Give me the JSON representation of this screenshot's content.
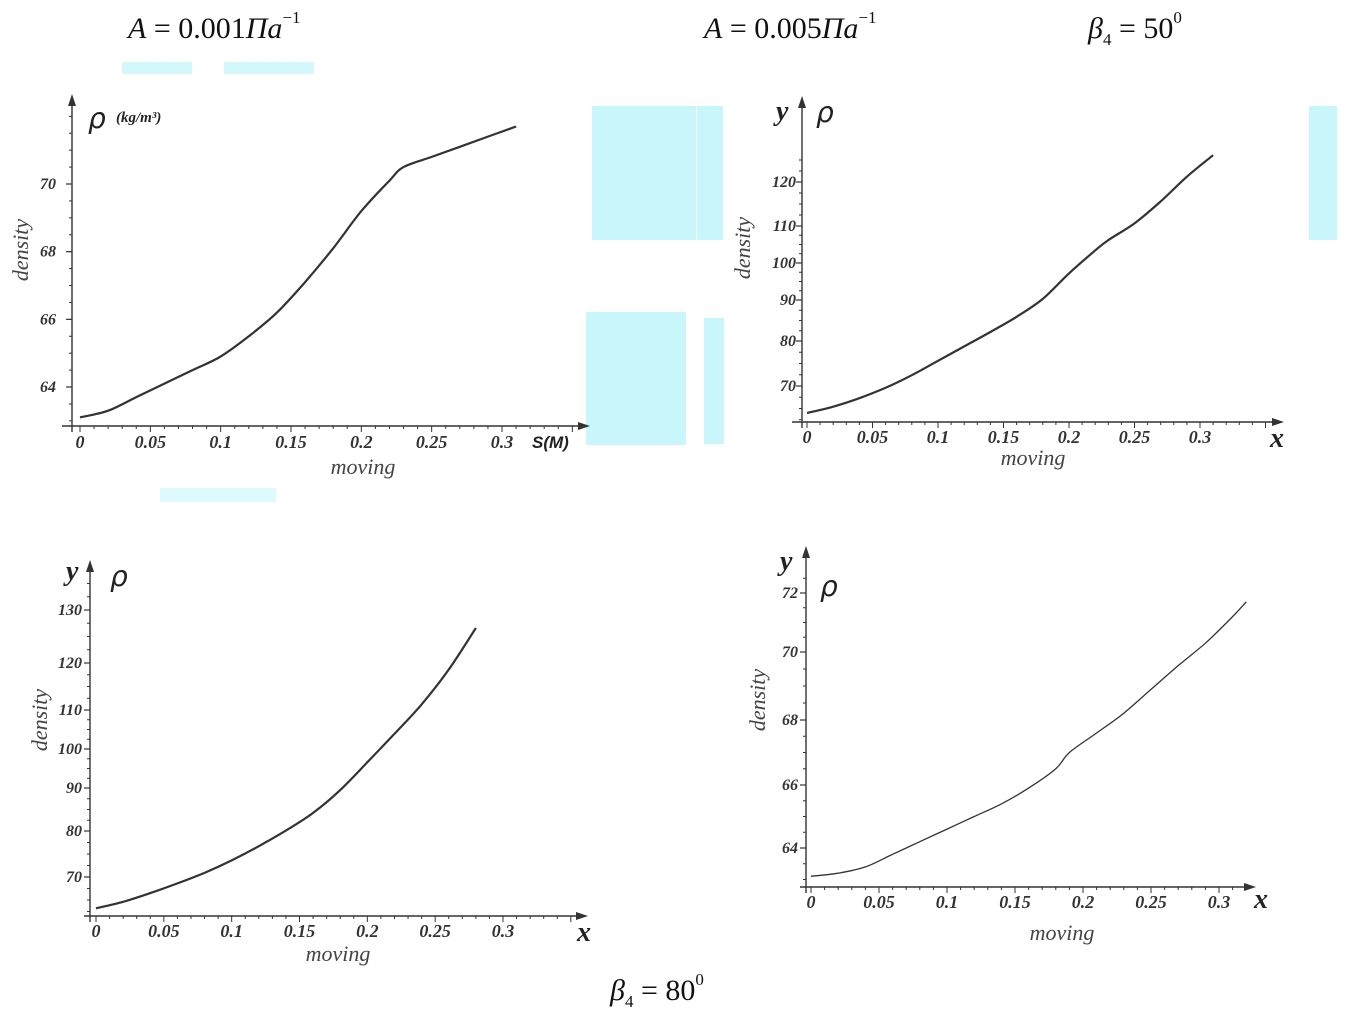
{
  "headers": {
    "left_formula": {
      "lhs": "A",
      "eq": " = ",
      "value": "0.001",
      "unit_base": "Па",
      "unit_exp": "−1"
    },
    "right_formula": {
      "lhs": "A",
      "eq": " = ",
      "value": "0.005",
      "unit_base": "Па",
      "unit_exp": "−1"
    },
    "beta_top": {
      "sym": "β",
      "sub": "4",
      "eq": " = ",
      "value": "50",
      "sup": "0"
    },
    "beta_bottom": {
      "sym": "β",
      "sub": "4",
      "eq": " = ",
      "value": "80",
      "sup": "0"
    }
  },
  "watermark_color": "#c8f6fb",
  "chart_data": [
    {
      "type": "line",
      "position": "top-left",
      "xlabel": "moving",
      "ylabel": "density",
      "x_axis_name": "S(M)",
      "y_axis_name": "ρ",
      "y_unit": "(kg/m³)",
      "x_ticks": [
        "0",
        "0.05",
        "0.1",
        "0.15",
        "0.2",
        "0.25",
        "0.3"
      ],
      "y_ticks": [
        "64",
        "66",
        "68",
        "70"
      ],
      "xlim": [
        0,
        0.35
      ],
      "ylim": [
        63,
        72
      ],
      "series": [
        {
          "x": [
            0,
            0.02,
            0.04,
            0.06,
            0.08,
            0.1,
            0.12,
            0.14,
            0.16,
            0.18,
            0.2,
            0.22,
            0.23,
            0.25,
            0.27,
            0.29,
            0.31
          ],
          "y": [
            63.1,
            63.3,
            63.7,
            64.1,
            64.5,
            64.9,
            65.5,
            66.2,
            67.1,
            68.1,
            69.2,
            70.1,
            70.5,
            70.8,
            71.1,
            71.4,
            71.7
          ]
        }
      ]
    },
    {
      "type": "line",
      "position": "top-right",
      "xlabel": "moving",
      "ylabel": "density",
      "x_axis_name": "x",
      "y_axis_name": "y",
      "y_symbol": "ρ",
      "x_ticks": [
        "0",
        "0.05",
        "0.1",
        "0.15",
        "0.2",
        "0.25",
        "0.3"
      ],
      "y_ticks": [
        "70",
        "80",
        "90",
        "100",
        "110",
        "120"
      ],
      "series": [
        {
          "x": [
            0,
            0.02,
            0.04,
            0.06,
            0.08,
            0.1,
            0.12,
            0.14,
            0.16,
            0.18,
            0.2,
            0.22,
            0.23,
            0.25,
            0.27,
            0.29,
            0.31
          ],
          "y": [
            64,
            65.4,
            67.3,
            69.6,
            72.4,
            75.6,
            78.8,
            82.2,
            85.9,
            90.3,
            97.2,
            103.4,
            106.2,
            110.6,
            115.6,
            121.2,
            126.1
          ]
        }
      ]
    },
    {
      "type": "line",
      "position": "bottom-left",
      "xlabel": "moving",
      "ylabel": "density",
      "x_axis_name": "x",
      "y_axis_name": "y",
      "y_symbol": "ρ",
      "x_ticks": [
        "0",
        "0.05",
        "0.1",
        "0.15",
        "0.2",
        "0.25",
        "0.3"
      ],
      "y_ticks": [
        "70",
        "80",
        "90",
        "100",
        "110",
        "120",
        "130"
      ],
      "series": [
        {
          "x": [
            0,
            0.02,
            0.04,
            0.06,
            0.08,
            0.1,
            0.12,
            0.14,
            0.16,
            0.18,
            0.2,
            0.22,
            0.24,
            0.26,
            0.28
          ],
          "y": [
            63.2,
            64.6,
            66.5,
            68.6,
            70.9,
            73.6,
            76.7,
            80.1,
            84.2,
            89.5,
            96.6,
            103.9,
            111.2,
            118.6,
            126.6
          ]
        }
      ]
    },
    {
      "type": "line",
      "position": "bottom-right",
      "xlabel": "moving",
      "ylabel": "density",
      "x_axis_name": "x",
      "y_axis_name": "y",
      "y_symbol": "ρ",
      "x_ticks": [
        "0",
        "0.05",
        "0.1",
        "0.15",
        "0.2",
        "0.25",
        "0.3"
      ],
      "y_ticks": [
        "64",
        "66",
        "68",
        "70",
        "72"
      ],
      "series": [
        {
          "x": [
            0,
            0.02,
            0.04,
            0.06,
            0.08,
            0.1,
            0.12,
            0.14,
            0.16,
            0.18,
            0.19,
            0.21,
            0.23,
            0.25,
            0.27,
            0.29,
            0.31,
            0.32
          ],
          "y": [
            63.1,
            63.2,
            63.4,
            63.8,
            64.2,
            64.6,
            65.0,
            65.4,
            65.9,
            66.5,
            67.0,
            67.6,
            68.2,
            68.9,
            69.6,
            70.3,
            71.2,
            71.7
          ]
        }
      ]
    }
  ]
}
